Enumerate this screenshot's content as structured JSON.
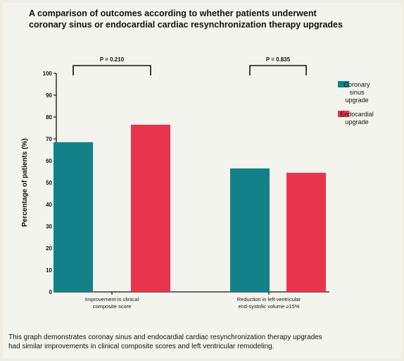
{
  "title_lines": [
    "A comparison of outcomes according to whether patients underwent",
    "coronary sinus or endocardial cardiac resynchronization therapy upgrades"
  ],
  "caption_lines": [
    "This graph demonstrates coronay sinus and endocardial cardiac resynchronization therapy upgrades",
    "had similar improvements in clinical composite scores and left ventricular remodeling."
  ],
  "colors": {
    "coronary_sinus": "#128188",
    "endocardial": "#e8344c",
    "axis": "#111111",
    "background": "#f4f4ee"
  },
  "chart_data": {
    "type": "bar",
    "ylabel": "Percentage of patients (%)",
    "xlabel": "",
    "ylim": [
      0,
      100
    ],
    "yticks": [
      0,
      10,
      20,
      30,
      40,
      50,
      60,
      70,
      80,
      90,
      100
    ],
    "categories": [
      [
        "Improvement in clinical",
        "composite score"
      ],
      [
        "Reduction in left ventricular",
        "end-systolic volume ≥15%"
      ]
    ],
    "series": [
      {
        "name": [
          "Coronary",
          "sinus",
          "upgrade"
        ],
        "color": "#128188",
        "values": [
          68.5,
          56.5
        ]
      },
      {
        "name": [
          "Endocardial",
          "upgrade"
        ],
        "color": "#e8344c",
        "values": [
          76.5,
          54.5
        ]
      }
    ],
    "annotations": [
      "P = 0.210",
      "P = 0.835"
    ],
    "grid": false,
    "legend_position": "right"
  }
}
